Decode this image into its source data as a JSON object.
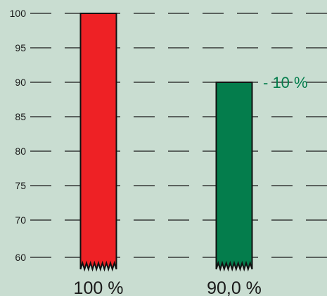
{
  "chart_data": {
    "type": "bar",
    "categories": [
      "100 %",
      "90,0 %"
    ],
    "values": [
      100,
      90
    ],
    "yticks": [
      100,
      95,
      90,
      85,
      80,
      75,
      70,
      60
    ],
    "ylim": [
      58,
      100
    ],
    "grid": true,
    "axis_break": true,
    "annotation": {
      "text": "- 10 %",
      "bar_index": 1
    },
    "colors": {
      "background": "#c9ddd1",
      "grid": "#1a1a1a",
      "bar_outline": "#111111",
      "bars": [
        "#ee2125",
        "#047d4c"
      ],
      "annotation": "#047d4c",
      "text": "#1a1a1a"
    }
  }
}
